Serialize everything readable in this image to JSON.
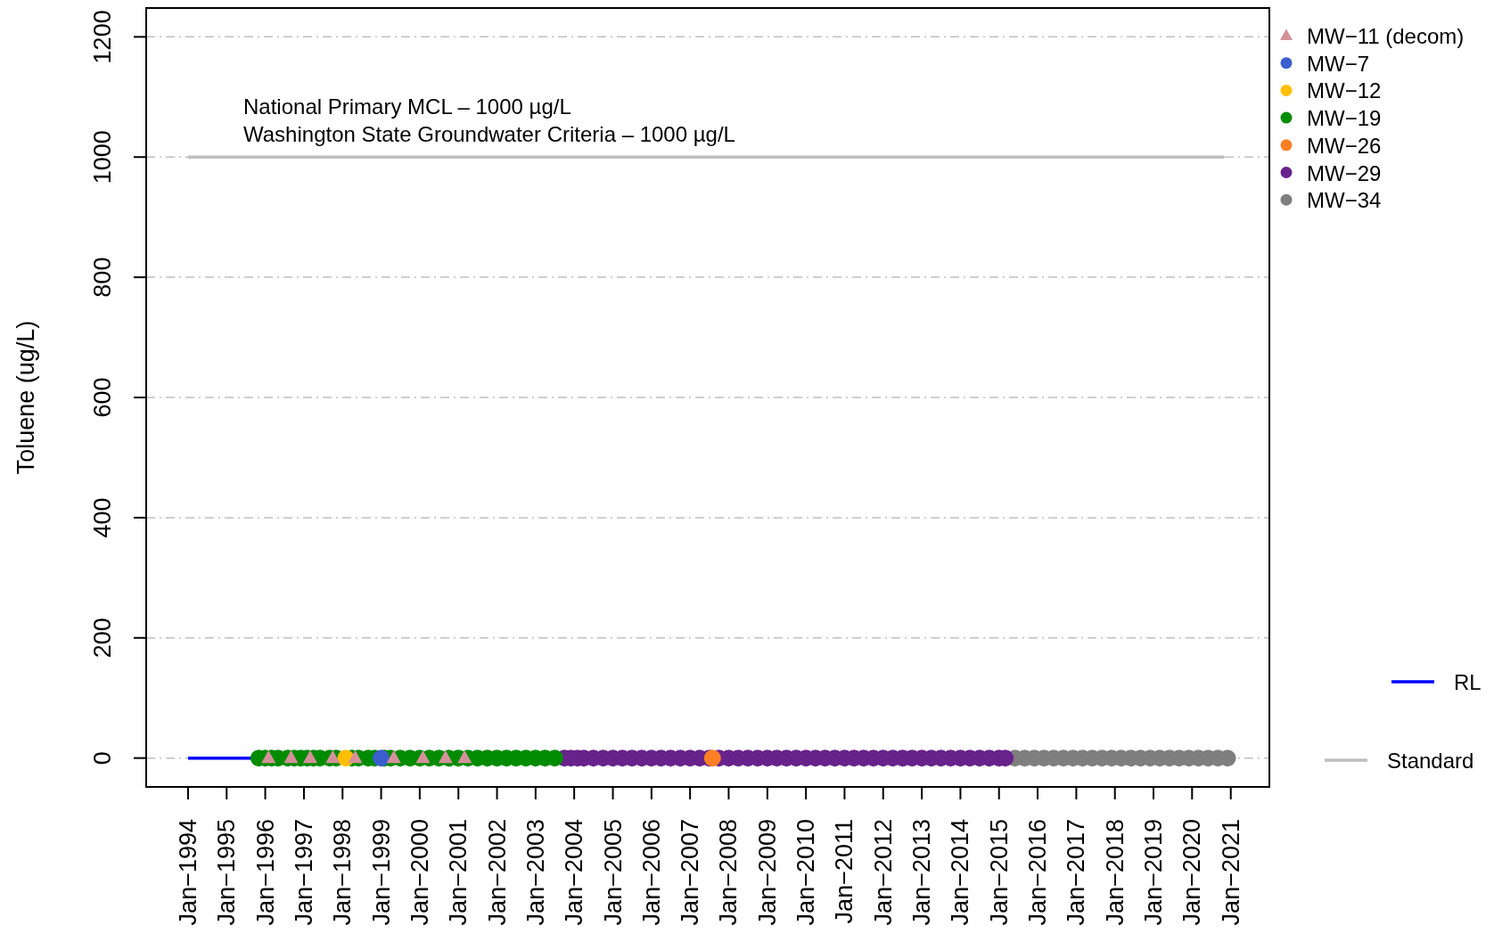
{
  "chart_data": {
    "type": "scatter",
    "ylabel": "Toluene (ug/L)",
    "annotations": [
      "National Primary MCL – 1000 µg/L",
      "Washington State Groundwater Criteria – 1000 µg/L"
    ],
    "xlim": [
      "1992-12",
      "2022-01"
    ],
    "xticks": [
      {
        "value": "1994-01",
        "label": "Jan−1994"
      },
      {
        "value": "1995-01",
        "label": "Jan−1995"
      },
      {
        "value": "1996-01",
        "label": "Jan−1996"
      },
      {
        "value": "1997-01",
        "label": "Jan−1997"
      },
      {
        "value": "1998-01",
        "label": "Jan−1998"
      },
      {
        "value": "1999-01",
        "label": "Jan−1999"
      },
      {
        "value": "2000-01",
        "label": "Jan−2000"
      },
      {
        "value": "2001-01",
        "label": "Jan−2001"
      },
      {
        "value": "2002-01",
        "label": "Jan−2002"
      },
      {
        "value": "2003-01",
        "label": "Jan−2003"
      },
      {
        "value": "2004-01",
        "label": "Jan−2004"
      },
      {
        "value": "2005-01",
        "label": "Jan−2005"
      },
      {
        "value": "2006-01",
        "label": "Jan−2006"
      },
      {
        "value": "2007-01",
        "label": "Jan−2007"
      },
      {
        "value": "2008-01",
        "label": "Jan−2008"
      },
      {
        "value": "2009-01",
        "label": "Jan−2009"
      },
      {
        "value": "2010-01",
        "label": "Jan−2010"
      },
      {
        "value": "2011-01",
        "label": "Jan−2011"
      },
      {
        "value": "2012-01",
        "label": "Jan−2012"
      },
      {
        "value": "2013-01",
        "label": "Jan−2013"
      },
      {
        "value": "2014-01",
        "label": "Jan−2014"
      },
      {
        "value": "2015-01",
        "label": "Jan−2015"
      },
      {
        "value": "2016-01",
        "label": "Jan−2016"
      },
      {
        "value": "2017-01",
        "label": "Jan−2017"
      },
      {
        "value": "2018-01",
        "label": "Jan−2018"
      },
      {
        "value": "2019-01",
        "label": "Jan−2019"
      },
      {
        "value": "2020-01",
        "label": "Jan−2020"
      },
      {
        "value": "2021-01",
        "label": "Jan−2021"
      }
    ],
    "ylim": [
      -48,
      1248
    ],
    "yticks": [
      0,
      200,
      400,
      600,
      800,
      1000,
      1200
    ],
    "grid": "y",
    "legend": "right",
    "series": [
      {
        "name": "MW−11 (decom)",
        "color": "#d4919a",
        "marker": "triangle",
        "x": [
          "1996-02",
          "1996-09",
          "1997-03",
          "1997-10",
          "1998-05",
          "1999-05",
          "2000-02",
          "2000-09",
          "2001-03"
        ],
        "values": [
          0,
          0,
          0,
          0,
          0,
          0,
          0,
          0,
          0
        ]
      },
      {
        "name": "MW−7",
        "color": "#3a5fcd",
        "marker": "circle",
        "x": [
          "1999-01"
        ],
        "values": [
          0
        ]
      },
      {
        "name": "MW−12",
        "color": "#ffbf00",
        "marker": "circle",
        "x": [
          "1998-02"
        ],
        "values": [
          0
        ]
      },
      {
        "name": "MW−19",
        "color": "#008b00",
        "marker": "circle",
        "x": [
          "1995-11",
          "1996-01",
          "1996-03",
          "1996-05",
          "1996-08",
          "1996-10",
          "1996-12",
          "1997-02",
          "1997-04",
          "1997-06",
          "1997-09",
          "1997-11",
          "1998-04",
          "1998-06",
          "1998-09",
          "1998-11",
          "1999-02",
          "1999-04",
          "1999-07",
          "1999-10",
          "2000-01",
          "2000-04",
          "2000-07",
          "2000-10",
          "2001-01",
          "2001-04",
          "2001-07",
          "2001-10",
          "2002-01",
          "2002-04",
          "2002-07",
          "2002-10",
          "2003-01",
          "2003-04",
          "2003-07"
        ],
        "values": [
          0,
          0,
          0,
          0,
          0,
          0,
          0,
          0,
          0,
          0,
          0,
          0,
          0,
          0,
          0,
          0,
          0,
          0,
          0,
          0,
          0,
          0,
          0,
          0,
          0,
          0,
          0,
          0,
          0,
          0,
          0,
          0,
          0,
          0,
          0
        ]
      },
      {
        "name": "MW−26",
        "color": "#ff7f24",
        "marker": "circle",
        "x": [
          "2007-08"
        ],
        "values": [
          0
        ]
      },
      {
        "name": "MW−29",
        "color": "#68228b",
        "marker": "circle",
        "x": [
          "2003-10",
          "2003-12",
          "2004-02",
          "2004-04",
          "2004-07",
          "2004-10",
          "2005-01",
          "2005-04",
          "2005-07",
          "2005-10",
          "2006-01",
          "2006-04",
          "2006-07",
          "2006-10",
          "2007-01",
          "2007-04",
          "2007-07",
          "2007-10",
          "2008-01",
          "2008-04",
          "2008-07",
          "2008-10",
          "2009-01",
          "2009-04",
          "2009-07",
          "2009-10",
          "2010-01",
          "2010-04",
          "2010-07",
          "2010-10",
          "2011-01",
          "2011-04",
          "2011-07",
          "2011-10",
          "2012-01",
          "2012-04",
          "2012-07",
          "2012-10",
          "2013-01",
          "2013-04",
          "2013-07",
          "2013-10",
          "2014-01",
          "2014-04",
          "2014-07",
          "2014-10",
          "2015-01",
          "2015-03"
        ],
        "values": [
          0,
          0,
          0,
          0,
          0,
          0,
          0,
          0,
          0,
          0,
          0,
          0,
          0,
          0,
          0,
          0,
          0,
          0,
          0,
          0,
          0,
          0,
          0,
          0,
          0,
          0,
          0,
          0,
          0,
          0,
          0,
          0,
          0,
          0,
          0,
          0,
          0,
          0,
          0,
          0,
          0,
          0,
          0,
          0,
          0,
          0,
          0,
          0
        ]
      },
      {
        "name": "MW−34",
        "color": "#7f7f7f",
        "marker": "circle",
        "x": [
          "2015-06",
          "2015-09",
          "2015-12",
          "2016-03",
          "2016-06",
          "2016-09",
          "2016-12",
          "2017-03",
          "2017-06",
          "2017-09",
          "2017-12",
          "2018-03",
          "2018-06",
          "2018-09",
          "2018-12",
          "2019-03",
          "2019-06",
          "2019-09",
          "2019-12",
          "2020-03",
          "2020-06",
          "2020-09",
          "2020-12"
        ],
        "values": [
          0,
          0,
          0,
          0,
          0,
          0,
          0,
          0,
          0,
          0,
          0,
          0,
          0,
          0,
          0,
          0,
          0,
          0,
          0,
          0,
          0,
          0,
          0
        ]
      },
      {
        "name": "RL",
        "type": "line",
        "color": "#0000ff",
        "x": [
          "1994-01",
          "1995-09"
        ],
        "values": [
          0,
          0
        ]
      },
      {
        "name": "Standard",
        "type": "line",
        "color": "#bebebe",
        "x": [
          "1994-01",
          "2020-11"
        ],
        "values": [
          1000,
          1000
        ]
      }
    ]
  }
}
